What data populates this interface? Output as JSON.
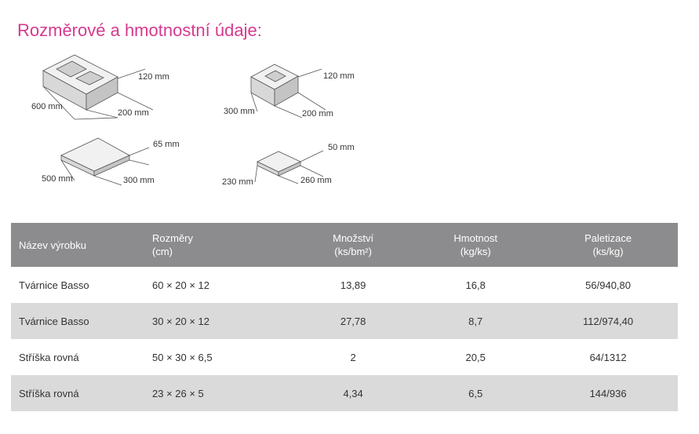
{
  "title": "Rozměrové a hmotnostní údaje:",
  "dimensions": {
    "block_large": {
      "length": "600 mm",
      "width": "200 mm",
      "height": "120 mm"
    },
    "block_small": {
      "length": "300 mm",
      "width": "200 mm",
      "height": "120 mm"
    },
    "cap_large": {
      "length": "500 mm",
      "width": "300 mm",
      "height": "65 mm"
    },
    "cap_small": {
      "length": "230 mm",
      "width": "260 mm",
      "height": "50 mm"
    }
  },
  "table": {
    "headers": [
      {
        "line1": "Název výrobku",
        "line2": ""
      },
      {
        "line1": "Rozměry",
        "line2": "(cm)"
      },
      {
        "line1": "Množství",
        "line2": "(ks/bm²)"
      },
      {
        "line1": "Hmotnost",
        "line2": "(kg/ks)"
      },
      {
        "line1": "Paletizace",
        "line2": "(ks/kg)"
      }
    ],
    "rows": [
      [
        "Tvárnice Basso",
        "60 × 20 × 12",
        "13,89",
        "16,8",
        "56/940,80"
      ],
      [
        "Tvárnice Basso",
        "30 × 20 × 12",
        "27,78",
        "8,7",
        "112/974,40"
      ],
      [
        "Stříška rovná",
        "50 × 30 × 6,5",
        "2",
        "20,5",
        "64/1312"
      ],
      [
        "Stříška rovná",
        "23 × 26 × 5",
        "4,34",
        "6,5",
        "144/936"
      ]
    ]
  },
  "colors": {
    "title": "#d63a8e",
    "header_bg": "#8c8c8e",
    "row_alt_bg": "#dadadb"
  }
}
